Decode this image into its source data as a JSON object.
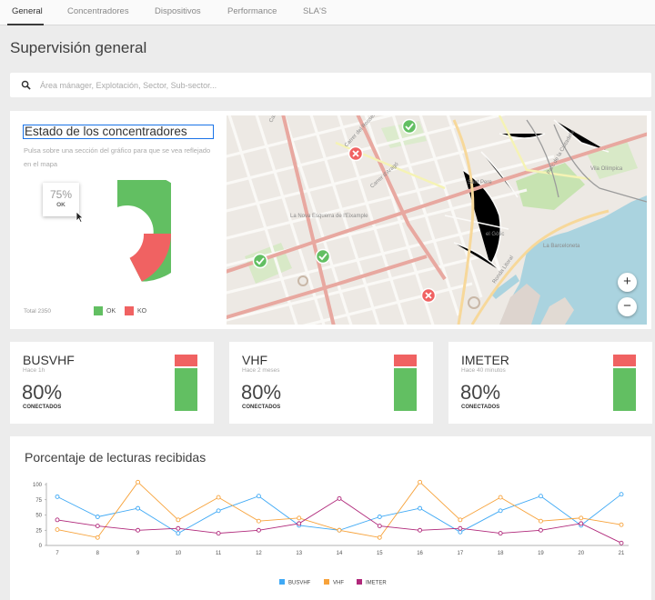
{
  "tabs": [
    {
      "label": "General",
      "active": true
    },
    {
      "label": "Concentradores"
    },
    {
      "label": "Dispositivos"
    },
    {
      "label": "Performance"
    },
    {
      "label": "SLA'S"
    }
  ],
  "page_title": "Supervisión general",
  "search": {
    "placeholder": "Área mánager, Explotación, Sector, Sub-sector..."
  },
  "status_card": {
    "title": "Estado de los concentradores",
    "hint": "Pulsa sobre una sección del gráfico para que se vea reflejado en el mapa",
    "donut": {
      "ok_percent": 75,
      "ko_percent": 25
    },
    "tooltip": {
      "value": "75%",
      "label": "OK"
    },
    "total": "Total 2350",
    "legend": [
      {
        "label": "OK",
        "color": "#62bf62"
      },
      {
        "label": "KO",
        "color": "#f06262"
      }
    ]
  },
  "map": {
    "labels": [
      "Carrer de Calvet",
      "Carrer del Rosselló",
      "Carrer d'Aragó",
      "Sant Pere",
      "Vila Olímpica",
      "Parc de la Ciutadella",
      "La Nova Esquerra de l'Eixample",
      "Ronda Litoral",
      "La Barceloneta",
      "el Gòtic"
    ],
    "zoom_in": "+",
    "zoom_out": "−"
  },
  "kpis": [
    {
      "name": "BUSVHF",
      "ago": "Hace 1h",
      "value": "80%",
      "status": "CONECTADOS",
      "ko_fraction": 0.21
    },
    {
      "name": "VHF",
      "ago": "Hace 2 meses",
      "value": "80%",
      "status": "CONECTADOS",
      "ko_fraction": 0.21
    },
    {
      "name": "IMETER",
      "ago": "Hace 40 minutos",
      "value": "80%",
      "status": "CONECTADOS",
      "ko_fraction": 0.21
    }
  ],
  "chart": {
    "title": "Porcentaje de lecturas recibidas"
  },
  "colors": {
    "ok": "#62bf62",
    "ko": "#f06262"
  },
  "chart_data": {
    "type": "line",
    "title": "Porcentaje de lecturas recibidas",
    "xlabel": "",
    "ylabel": "",
    "x": [
      7,
      8,
      9,
      10,
      11,
      12,
      13,
      14,
      15,
      16,
      17,
      18,
      19,
      20,
      21
    ],
    "ylim": [
      0,
      100
    ],
    "yticks": [
      0,
      25,
      50,
      75,
      100
    ],
    "grid": false,
    "legend_position": "bottom",
    "series": [
      {
        "name": "BUSVHF",
        "color": "#3fa9f5",
        "values": [
          80,
          47,
          61,
          20,
          57,
          81,
          33,
          25,
          47,
          61,
          22,
          57,
          81,
          33,
          84
        ]
      },
      {
        "name": "VHF",
        "color": "#f7a23a",
        "values": [
          26,
          13,
          104,
          42,
          79,
          40,
          45,
          25,
          13,
          104,
          42,
          79,
          40,
          45,
          34
        ]
      },
      {
        "name": "IMETER",
        "color": "#b0287a",
        "values": [
          42,
          32,
          25,
          28,
          20,
          25,
          36,
          77,
          32,
          25,
          28,
          20,
          25,
          36,
          4
        ]
      }
    ]
  }
}
